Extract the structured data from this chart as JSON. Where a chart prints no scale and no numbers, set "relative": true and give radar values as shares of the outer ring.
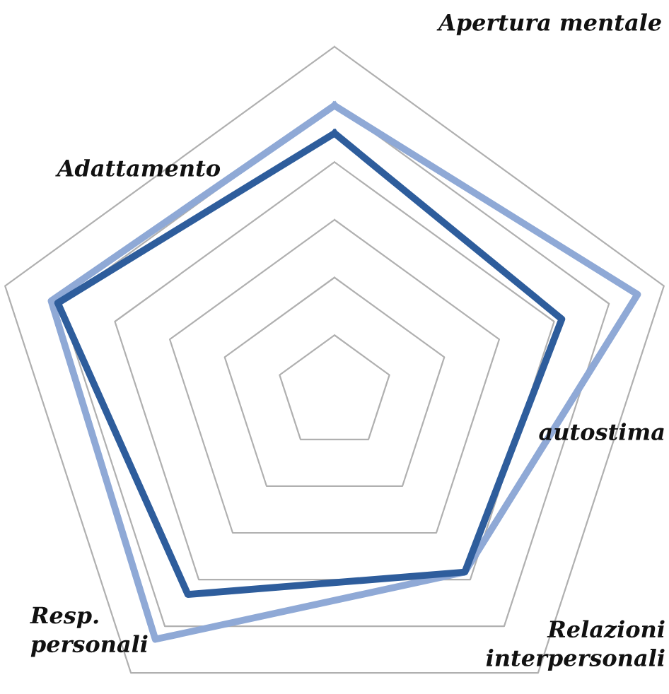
{
  "chart_data": {
    "type": "radar",
    "relative": true,
    "grid": true,
    "categories": [
      "Apertura mentale",
      "autostima",
      "Relazioni\ninterpersonali",
      "Resp.\npersonali",
      "Adattamento"
    ],
    "series": [
      {
        "color": "#8fa9d6",
        "values": [
          0.83,
          0.92,
          0.64,
          0.88,
          0.86
        ]
      },
      {
        "color": "#2e5d9c",
        "values": [
          0.75,
          0.69,
          0.64,
          0.72,
          0.84
        ]
      }
    ]
  }
}
